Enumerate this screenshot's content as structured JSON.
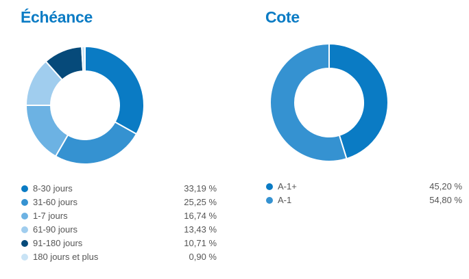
{
  "chart_data": [
    {
      "type": "pie",
      "title": "Échéance",
      "categories": [
        "8-30 jours",
        "31-60 jours",
        "1-7 jours",
        "61-90 jours",
        "91-180 jours",
        "180 jours et plus"
      ],
      "values": [
        33.19,
        25.25,
        16.74,
        13.43,
        10.71,
        0.9
      ],
      "value_labels": [
        "33,19 %",
        "25,25 %",
        "16,74 %",
        "13,43 %",
        "10,71 %",
        "0,90 %"
      ],
      "colors": [
        "#0a7bc4",
        "#3592d1",
        "#6cb2e3",
        "#a0cdee",
        "#064a7a",
        "#c9e3f5"
      ]
    },
    {
      "type": "pie",
      "title": "Cote",
      "categories": [
        "A-1+",
        "A-1"
      ],
      "values": [
        45.2,
        54.8
      ],
      "value_labels": [
        "45,20 %",
        "54,80 %"
      ],
      "colors": [
        "#0a7bc4",
        "#3592d1"
      ]
    }
  ]
}
